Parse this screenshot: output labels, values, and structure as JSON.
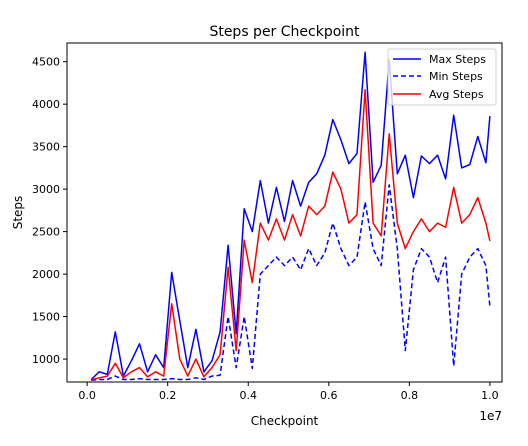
{
  "chart_data": {
    "type": "line",
    "title": "Steps per Checkpoint",
    "xlabel": "Checkpoint",
    "ylabel": "Steps",
    "x_offset_label": "1e7",
    "xlim": [
      -0.05,
      1.03
    ],
    "ylim": [
      730,
      4720
    ],
    "xticks": [
      0.0,
      0.2,
      0.4,
      0.6,
      0.8,
      1.0
    ],
    "xtick_labels": [
      "0.0",
      "0.2",
      "0.4",
      "0.6",
      "0.8",
      "1.0"
    ],
    "yticks": [
      1000,
      1500,
      2000,
      2500,
      3000,
      3500,
      4000,
      4500
    ],
    "ytick_labels": [
      "1000",
      "1500",
      "2000",
      "2500",
      "3000",
      "3500",
      "4000",
      "4500"
    ],
    "grid": false,
    "legend_position": "upper-right",
    "colors": {
      "max": "#0000ff",
      "min": "#0000ff",
      "avg": "#ff0000"
    },
    "x": [
      0.01,
      0.03,
      0.05,
      0.07,
      0.09,
      0.11,
      0.13,
      0.15,
      0.17,
      0.19,
      0.21,
      0.23,
      0.25,
      0.27,
      0.29,
      0.31,
      0.33,
      0.35,
      0.37,
      0.39,
      0.41,
      0.43,
      0.45,
      0.47,
      0.49,
      0.51,
      0.53,
      0.55,
      0.57,
      0.59,
      0.61,
      0.63,
      0.65,
      0.67,
      0.69,
      0.71,
      0.73,
      0.75,
      0.77,
      0.79,
      0.81,
      0.83,
      0.85,
      0.87,
      0.89,
      0.91,
      0.93,
      0.95,
      0.97,
      0.99,
      1.0
    ],
    "series": [
      {
        "name": "Max Steps",
        "style": "solid",
        "values": [
          760,
          850,
          820,
          1320,
          800,
          980,
          1180,
          850,
          1050,
          900,
          2020,
          1450,
          900,
          1350,
          850,
          980,
          1320,
          2340,
          1300,
          2770,
          2500,
          3100,
          2600,
          3020,
          2620,
          3100,
          2800,
          3080,
          3180,
          3400,
          3820,
          3580,
          3300,
          3420,
          4610,
          3080,
          3280,
          4520,
          3180,
          3400,
          2900,
          3390,
          3300,
          3400,
          3120,
          3870,
          3250,
          3290,
          3620,
          3310,
          3860
        ]
      },
      {
        "name": "Min Steps",
        "style": "dashed",
        "values": [
          750,
          760,
          760,
          800,
          760,
          760,
          770,
          760,
          760,
          760,
          770,
          760,
          760,
          780,
          760,
          800,
          810,
          1500,
          900,
          1500,
          890,
          2000,
          2100,
          2200,
          2100,
          2200,
          2050,
          2300,
          2100,
          2250,
          2600,
          2300,
          2100,
          2200,
          2850,
          2300,
          2100,
          3050,
          2300,
          1100,
          2050,
          2300,
          2200,
          1900,
          2200,
          920,
          2000,
          2200,
          2300,
          2100,
          1620
        ]
      },
      {
        "name": "Avg Steps",
        "style": "solid",
        "values": [
          755,
          780,
          800,
          950,
          780,
          850,
          900,
          790,
          850,
          800,
          1650,
          1000,
          800,
          1000,
          790,
          900,
          1050,
          2080,
          1100,
          2400,
          1900,
          2600,
          2400,
          2650,
          2400,
          2700,
          2450,
          2800,
          2700,
          2800,
          3200,
          3000,
          2600,
          2700,
          4170,
          2600,
          2450,
          3650,
          2600,
          2300,
          2500,
          2650,
          2500,
          2600,
          2550,
          3020,
          2600,
          2700,
          2900,
          2600,
          2390
        ]
      }
    ]
  }
}
